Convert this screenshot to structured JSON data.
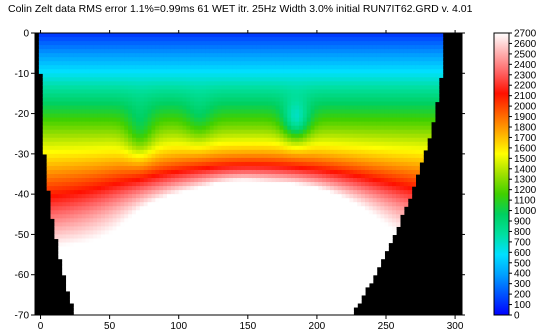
{
  "chart_data": {
    "type": "heatmap",
    "title": "Colin Zelt data RMS error 1.1%=0.99ms 61 WET itr. 25Hz Width 3.0% initial RUN7IT62.GRD v. 4.01",
    "xlabel": "",
    "ylabel": "",
    "xlim": [
      -4,
      305
    ],
    "ylim": [
      -70,
      0
    ],
    "x_ticks": [
      "0",
      "50",
      "100",
      "150",
      "200",
      "250",
      "300"
    ],
    "y_ticks": [
      "0",
      "-10",
      "-20",
      "-30",
      "-40",
      "-50",
      "-60",
      "-70"
    ],
    "colorbar": {
      "min": 0,
      "max": 2700,
      "step": 100,
      "labels": [
        "2700",
        "2600",
        "2500",
        "2400",
        "2300",
        "2200",
        "2100",
        "2000",
        "1900",
        "1800",
        "1700",
        "1600",
        "1500",
        "1400",
        "1300",
        "1200",
        "1100",
        "1000",
        "900",
        "800",
        "700",
        "600",
        "500",
        "400",
        "300",
        "200",
        "100",
        "0"
      ]
    },
    "masked_color": "#000000",
    "colormap": [
      "#0000ff",
      "#0050ff",
      "#00a0ff",
      "#00e0ff",
      "#00e0a0",
      "#00d060",
      "#40d000",
      "#a0e000",
      "#ffff00",
      "#ffb000",
      "#ff6000",
      "#ff1000",
      "#ff6060",
      "#ffb0b0",
      "#ffffff"
    ]
  }
}
